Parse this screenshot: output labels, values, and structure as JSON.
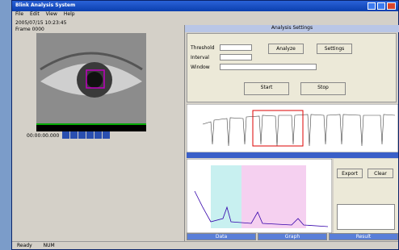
{
  "window": {
    "title": "Blink Analysis System",
    "menu": [
      "File",
      "Edit",
      "View",
      "Help"
    ]
  },
  "left_pane": {
    "info": [
      "2005/07/15 10:23:45",
      "Frame 0000"
    ],
    "timecode": "00:00:00.000"
  },
  "right_pane": {
    "header": "Analysis Settings",
    "buttons": [
      "Analyze",
      "Settings",
      "Start",
      "Stop",
      "Export",
      "Clear"
    ],
    "fields": [
      "Threshold",
      "Interval",
      "Window"
    ],
    "tabs": [
      "Data",
      "Graph",
      "Result"
    ]
  },
  "status": [
    "Ready",
    "NUM"
  ]
}
